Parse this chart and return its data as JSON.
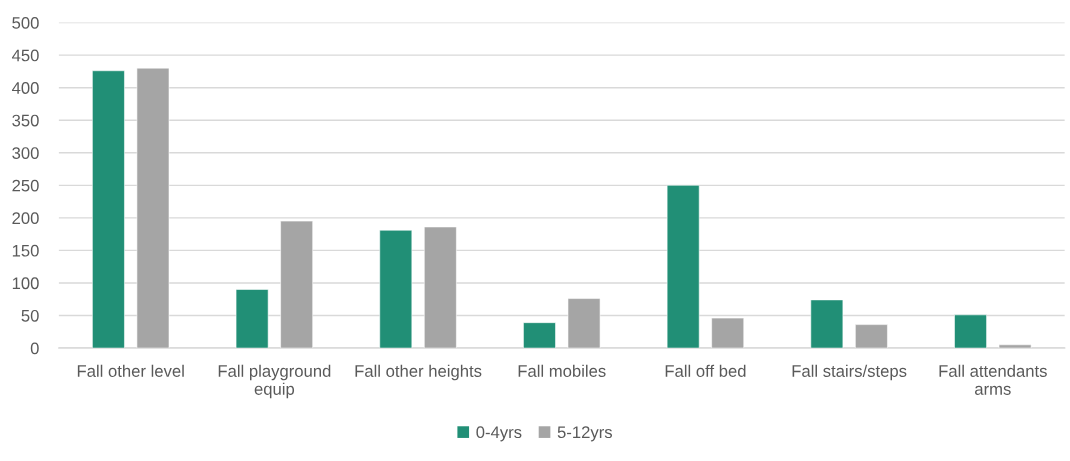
{
  "chart_data": {
    "type": "bar",
    "categories": [
      "Fall other level",
      "Fall playground equip",
      "Fall other heights",
      "Fall mobiles",
      "Fall off bed",
      "Fall stairs/steps",
      "Fall attendants arms"
    ],
    "series": [
      {
        "name": "0-4yrs",
        "color": "#218f76",
        "values": [
          426,
          90,
          181,
          39,
          250,
          74,
          51
        ]
      },
      {
        "name": "5-12yrs",
        "color": "#a5a5a5",
        "values": [
          430,
          195,
          186,
          76,
          46,
          36,
          5
        ]
      }
    ],
    "ylim": [
      0,
      500
    ],
    "yticks": [
      0,
      50,
      100,
      150,
      200,
      250,
      300,
      350,
      400,
      450,
      500
    ],
    "grid": "y",
    "legend": "bottom"
  }
}
